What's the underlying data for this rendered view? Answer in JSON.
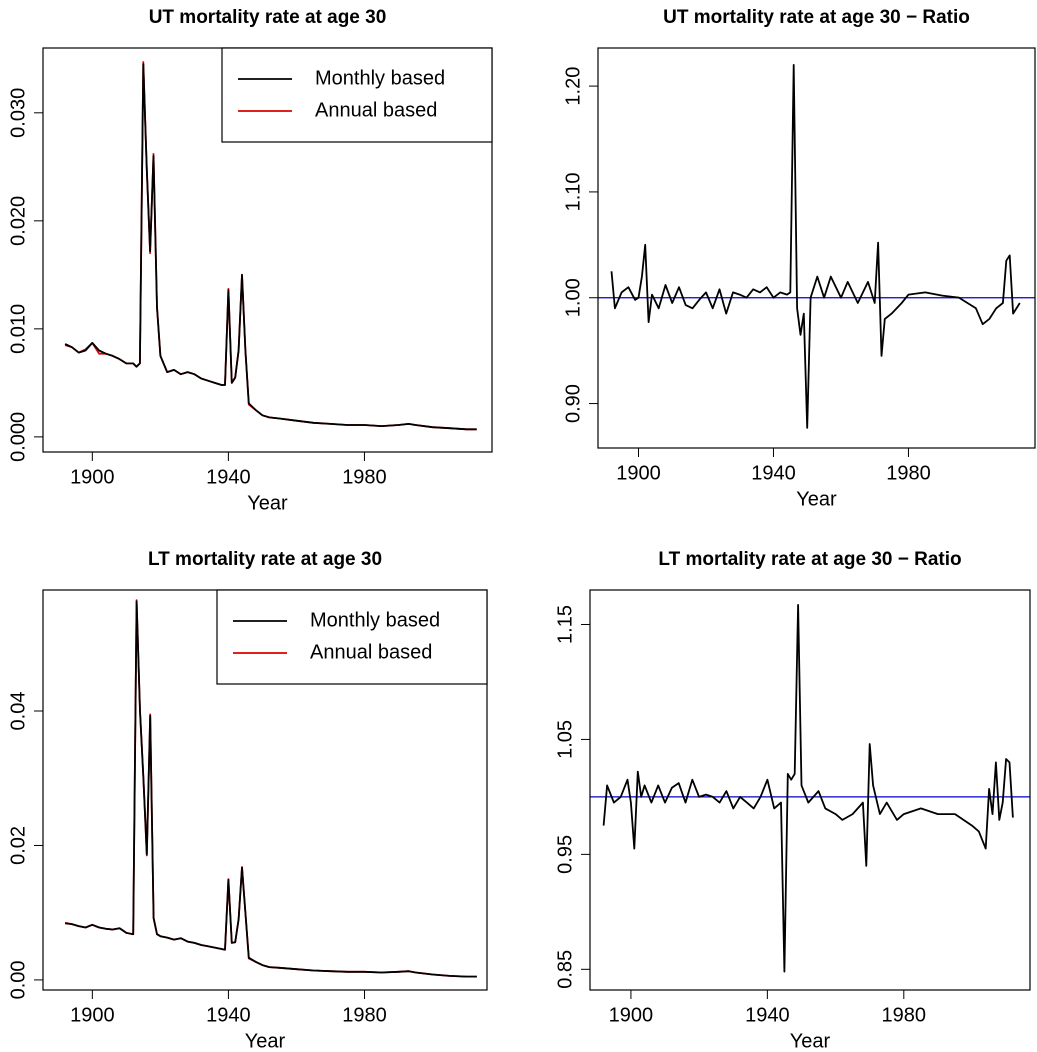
{
  "chart_data": [
    {
      "type": "line",
      "title": "UT mortality rate at age 30",
      "xlabel": "Year",
      "x": [
        1892,
        1894,
        1896,
        1898,
        1900,
        1902,
        1904,
        1906,
        1908,
        1910,
        1912,
        1913,
        1914,
        1915,
        1916,
        1917,
        1918,
        1919,
        1920,
        1922,
        1924,
        1926,
        1928,
        1930,
        1932,
        1934,
        1936,
        1938,
        1939,
        1940,
        1941,
        1942,
        1943,
        1944,
        1945,
        1946,
        1948,
        1950,
        1952,
        1955,
        1960,
        1965,
        1970,
        1975,
        1980,
        1985,
        1990,
        1993,
        1995,
        2000,
        2005,
        2010,
        2013
      ],
      "series": [
        {
          "name": "Monthly based",
          "color": "#000000",
          "values": [
            0.0086,
            0.0083,
            0.0078,
            0.008,
            0.0087,
            0.008,
            0.0077,
            0.0075,
            0.0072,
            0.0068,
            0.0068,
            0.0065,
            0.0068,
            0.0345,
            0.025,
            0.0172,
            0.026,
            0.012,
            0.0075,
            0.006,
            0.0062,
            0.0058,
            0.006,
            0.0058,
            0.0054,
            0.0052,
            0.005,
            0.0048,
            0.0048,
            0.0136,
            0.005,
            0.0055,
            0.008,
            0.015,
            0.008,
            0.0031,
            0.0025,
            0.002,
            0.0018,
            0.0017,
            0.0015,
            0.0013,
            0.0012,
            0.0011,
            0.0011,
            0.001,
            0.0011,
            0.0012,
            0.0011,
            0.0009,
            0.0008,
            0.0007,
            0.0007
          ]
        },
        {
          "name": "Annual based",
          "color": "#dd0000",
          "values": [
            0.0085,
            0.0083,
            0.0078,
            0.0081,
            0.0087,
            0.0077,
            0.0077,
            0.0075,
            0.0072,
            0.0068,
            0.0068,
            0.0065,
            0.0068,
            0.0347,
            0.025,
            0.017,
            0.0262,
            0.012,
            0.0075,
            0.006,
            0.0062,
            0.0058,
            0.006,
            0.0058,
            0.0054,
            0.0052,
            0.005,
            0.0048,
            0.0048,
            0.0137,
            0.005,
            0.0055,
            0.008,
            0.015,
            0.008,
            0.003,
            0.0025,
            0.002,
            0.0018,
            0.0017,
            0.0015,
            0.0013,
            0.0012,
            0.0011,
            0.0011,
            0.001,
            0.0011,
            0.0012,
            0.0011,
            0.0009,
            0.0008,
            0.0007,
            0.0007
          ]
        }
      ],
      "xlim": [
        1885.5,
        2017.5
      ],
      "ylim": [
        -0.0014,
        0.036
      ],
      "xticks": [
        1900,
        1940,
        1980
      ],
      "yticks": [
        {
          "value": 0,
          "label": "0.000"
        },
        {
          "value": 0.01,
          "label": "0.010"
        },
        {
          "value": 0.02,
          "label": "0.020"
        },
        {
          "value": 0.03,
          "label": "0.030"
        }
      ],
      "legend": "topright"
    },
    {
      "type": "line",
      "title": "UT mortality rate at age 30 − Ratio",
      "xlabel": "Year",
      "x": [
        1892,
        1893,
        1895,
        1897,
        1899,
        1900,
        1901,
        1902,
        1903,
        1904,
        1906,
        1908,
        1910,
        1912,
        1914,
        1916,
        1918,
        1920,
        1922,
        1924,
        1926,
        1928,
        1930,
        1932,
        1934,
        1936,
        1938,
        1940,
        1942,
        1944,
        1945,
        1946,
        1947,
        1948,
        1949,
        1950,
        1951,
        1953,
        1955,
        1957,
        1960,
        1962,
        1965,
        1968,
        1970,
        1971,
        1972,
        1973,
        1975,
        1978,
        1980,
        1985,
        1990,
        1995,
        2000,
        2002,
        2004,
        2006,
        2008,
        2009,
        2010,
        2011,
        2013
      ],
      "series": [
        {
          "color": "#000000",
          "values": [
            1.025,
            0.99,
            1.005,
            1.01,
            0.998,
            1.0,
            1.02,
            1.05,
            0.977,
            1.003,
            0.99,
            1.012,
            0.995,
            1.01,
            0.993,
            0.99,
            0.998,
            1.005,
            0.99,
            1.008,
            0.985,
            1.005,
            1.003,
            1.0,
            1.008,
            1.005,
            1.01,
            1.0,
            1.005,
            1.003,
            1.005,
            1.22,
            0.99,
            0.965,
            0.985,
            0.877,
            1.0,
            1.02,
            1.0,
            1.02,
            1.0,
            1.015,
            0.995,
            1.015,
            0.995,
            1.052,
            0.945,
            0.98,
            0.985,
            0.995,
            1.003,
            1.005,
            1.002,
            1.0,
            0.99,
            0.975,
            0.98,
            0.99,
            0.995,
            1.035,
            1.04,
            0.985,
            0.995
          ]
        }
      ],
      "xlim": [
        1888,
        2017.5
      ],
      "ylim": [
        0.858,
        1.236
      ],
      "xticks": [
        1900,
        1940,
        1980
      ],
      "yticks": [
        {
          "value": 0.9,
          "label": "0.90"
        },
        {
          "value": 1,
          "label": "1.00"
        },
        {
          "value": 1.1,
          "label": "1.10"
        },
        {
          "value": 1.2,
          "label": "1.20"
        }
      ],
      "hline": 1,
      "hline_color": "#0000cc"
    },
    {
      "type": "line",
      "title": "LT mortality rate at age 30",
      "xlabel": "Year",
      "x": [
        1892,
        1894,
        1896,
        1898,
        1900,
        1902,
        1904,
        1906,
        1908,
        1910,
        1912,
        1913,
        1914,
        1915,
        1916,
        1917,
        1918,
        1919,
        1920,
        1922,
        1924,
        1926,
        1928,
        1930,
        1932,
        1934,
        1936,
        1938,
        1939,
        1940,
        1941,
        1942,
        1943,
        1944,
        1945,
        1946,
        1948,
        1950,
        1952,
        1955,
        1960,
        1965,
        1970,
        1975,
        1980,
        1985,
        1990,
        1993,
        1995,
        2000,
        2005,
        2010,
        2013
      ],
      "series": [
        {
          "name": "Monthly based",
          "color": "#000000",
          "values": [
            0.0084,
            0.0083,
            0.008,
            0.0078,
            0.0082,
            0.0078,
            0.0076,
            0.0075,
            0.0077,
            0.007,
            0.0068,
            0.0563,
            0.04,
            0.03,
            0.0187,
            0.0393,
            0.0092,
            0.0068,
            0.0065,
            0.0063,
            0.006,
            0.0062,
            0.0057,
            0.0055,
            0.0052,
            0.005,
            0.0048,
            0.0046,
            0.0045,
            0.0149,
            0.0055,
            0.0056,
            0.009,
            0.0167,
            0.01,
            0.0033,
            0.0027,
            0.0022,
            0.0019,
            0.0018,
            0.0016,
            0.0014,
            0.0013,
            0.0012,
            0.0012,
            0.0011,
            0.0012,
            0.0013,
            0.0011,
            0.0008,
            0.0006,
            0.0005,
            0.0005
          ]
        },
        {
          "name": "Annual based",
          "color": "#dd0000",
          "values": [
            0.0085,
            0.0083,
            0.008,
            0.0078,
            0.0082,
            0.0078,
            0.0076,
            0.0075,
            0.0077,
            0.007,
            0.0068,
            0.0565,
            0.04,
            0.03,
            0.0185,
            0.0395,
            0.0092,
            0.0068,
            0.0065,
            0.0063,
            0.006,
            0.0062,
            0.0057,
            0.0055,
            0.0052,
            0.005,
            0.0048,
            0.0046,
            0.0045,
            0.015,
            0.0055,
            0.0056,
            0.009,
            0.0168,
            0.01,
            0.0032,
            0.0027,
            0.0022,
            0.0019,
            0.0018,
            0.0016,
            0.0014,
            0.0013,
            0.0012,
            0.0012,
            0.0011,
            0.0012,
            0.0013,
            0.0011,
            0.0008,
            0.0006,
            0.0005,
            0.0005
          ]
        }
      ],
      "xlim": [
        1885.5,
        2016
      ],
      "ylim": [
        -0.0015,
        0.058
      ],
      "xticks": [
        1900,
        1940,
        1980
      ],
      "yticks": [
        {
          "value": 0,
          "label": "0.00"
        },
        {
          "value": 0.02,
          "label": "0.02"
        },
        {
          "value": 0.04,
          "label": "0.04"
        }
      ],
      "legend": "topright"
    },
    {
      "type": "line",
      "title": "LT mortality rate at age 30 − Ratio",
      "xlabel": "Year",
      "x": [
        1892,
        1893,
        1895,
        1897,
        1899,
        1900,
        1901,
        1902,
        1903,
        1904,
        1906,
        1908,
        1910,
        1912,
        1914,
        1916,
        1918,
        1920,
        1922,
        1924,
        1926,
        1928,
        1930,
        1932,
        1934,
        1936,
        1938,
        1940,
        1942,
        1944,
        1945,
        1946,
        1947,
        1948,
        1949,
        1950,
        1952,
        1955,
        1957,
        1960,
        1962,
        1965,
        1968,
        1969,
        1970,
        1971,
        1973,
        1975,
        1978,
        1980,
        1985,
        1990,
        1995,
        2000,
        2002,
        2004,
        2005,
        2006,
        2007,
        2008,
        2009,
        2010,
        2011,
        2012
      ],
      "series": [
        {
          "color": "#000000",
          "values": [
            0.975,
            1.01,
            0.995,
            1.0,
            1.015,
            0.995,
            0.955,
            1.022,
            1.0,
            1.01,
            0.995,
            1.01,
            0.995,
            1.008,
            1.012,
            0.995,
            1.015,
            1.0,
            1.002,
            1.0,
            0.995,
            1.005,
            0.99,
            1.0,
            0.995,
            0.99,
            1.0,
            1.015,
            0.99,
            0.995,
            0.848,
            1.02,
            1.015,
            1.02,
            1.167,
            1.01,
            0.995,
            1.005,
            0.99,
            0.985,
            0.98,
            0.985,
            0.995,
            0.94,
            1.046,
            1.01,
            0.985,
            0.995,
            0.98,
            0.985,
            0.99,
            0.985,
            0.985,
            0.975,
            0.97,
            0.955,
            1.007,
            0.985,
            1.03,
            0.98,
            0.995,
            1.033,
            1.03,
            0.982
          ]
        }
      ],
      "xlim": [
        1888,
        2017
      ],
      "ylim": [
        0.832,
        1.18
      ],
      "xticks": [
        1900,
        1940,
        1980
      ],
      "yticks": [
        {
          "value": 0.85,
          "label": "0.85"
        },
        {
          "value": 0.95,
          "label": "0.95"
        },
        {
          "value": 1.05,
          "label": "1.05"
        },
        {
          "value": 1.15,
          "label": "1.15"
        }
      ],
      "hline": 1,
      "hline_color": "#0000cc"
    }
  ]
}
